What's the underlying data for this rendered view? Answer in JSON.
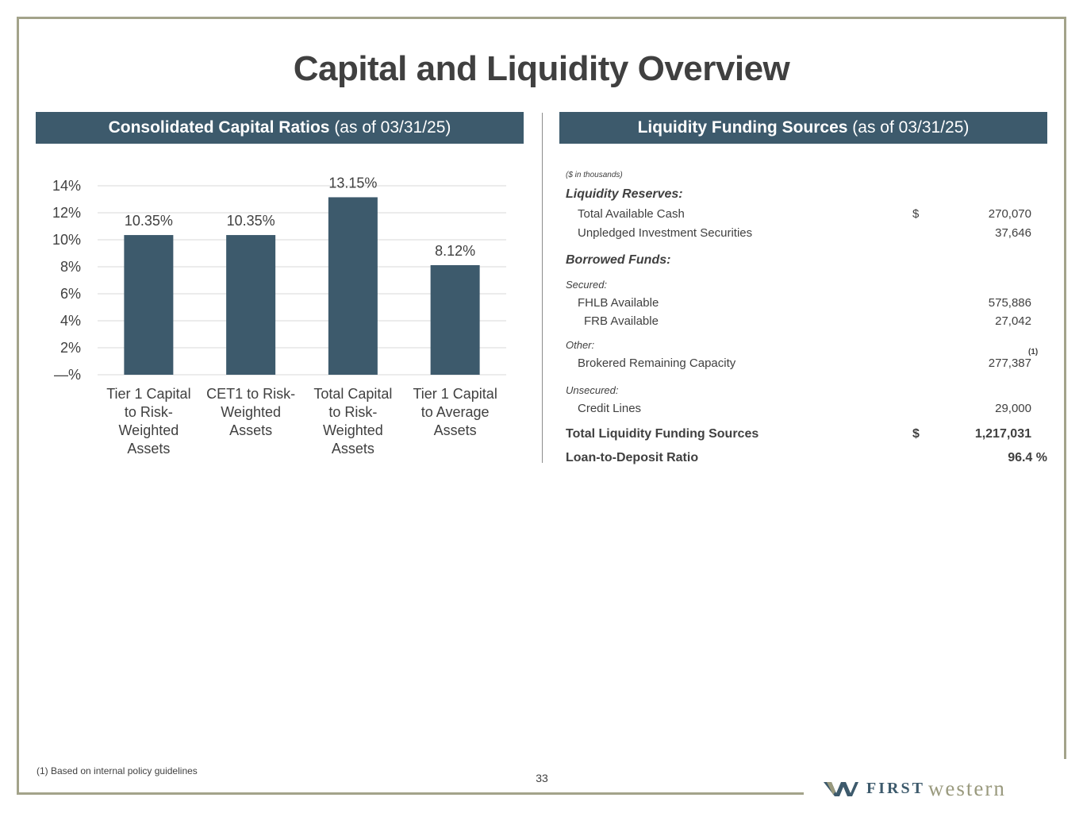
{
  "title": "Capital and Liquidity Overview",
  "left_header": {
    "bold": "Consolidated Capital Ratios",
    "normal": "(as of 03/31/25)"
  },
  "right_header": {
    "bold": "Liquidity Funding Sources",
    "normal": "(as of 03/31/25)"
  },
  "chart_data": {
    "type": "bar",
    "title": "Consolidated Capital Ratios (as of 03/31/25)",
    "categories": [
      [
        "Tier 1 Capital",
        "to Risk-",
        "Weighted",
        "Assets"
      ],
      [
        "CET1 to Risk-",
        "Weighted",
        "Assets"
      ],
      [
        "Total Capital",
        "to Risk-",
        "Weighted",
        "Assets"
      ],
      [
        "Tier 1 Capital",
        "to Average",
        "Assets"
      ]
    ],
    "values": [
      10.35,
      10.35,
      13.15,
      8.12
    ],
    "value_labels": [
      "10.35%",
      "10.35%",
      "13.15%",
      "8.12%"
    ],
    "yticks": [
      0,
      2,
      4,
      6,
      8,
      10,
      12,
      14
    ],
    "ytick_labels": [
      "—%",
      "2%",
      "4%",
      "6%",
      "8%",
      "10%",
      "12%",
      "14%"
    ],
    "ylim": [
      0,
      14
    ],
    "grid": true,
    "bar_color": "#3d5a6c",
    "xlabel": "",
    "ylabel": ""
  },
  "liquidity": {
    "units_note": "($ in thousands)",
    "reserves_label": "Liquidity Reserves:",
    "total_available_cash": {
      "label": "Total Available Cash",
      "currency": "$",
      "value": "270,070"
    },
    "unpledged": {
      "label": "Unpledged Investment Securities",
      "value": "37,646"
    },
    "borrowed_label": "Borrowed Funds:",
    "secured_label": "Secured:",
    "fhlb": {
      "label": "FHLB Available",
      "value": "575,886"
    },
    "frb": {
      "label": "FRB Available",
      "value": "27,042"
    },
    "other_label": "Other:",
    "brokered": {
      "label": "Brokered Remaining Capacity",
      "value": "277,387",
      "footnote": "(1)"
    },
    "unsecured_label": "Unsecured:",
    "credit_lines": {
      "label": "Credit Lines",
      "value": "29,000"
    },
    "total": {
      "label": "Total Liquidity Funding Sources",
      "currency": "$",
      "value": "1,217,031"
    },
    "ltd": {
      "label": "Loan-to-Deposit Ratio",
      "value": "96.4 %"
    }
  },
  "footnote": "(1)  Based on internal policy guidelines",
  "page_number": "33",
  "logo": {
    "first": "FIRST",
    "western": "western"
  }
}
